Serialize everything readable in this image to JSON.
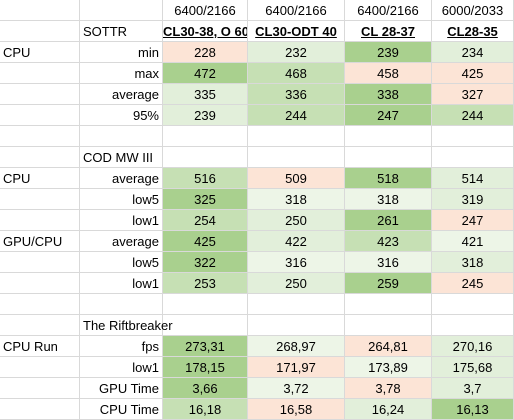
{
  "colors": {
    "green_dark": "#a9d08e",
    "green_mid": "#c6e0b4",
    "green_light": "#e2efda",
    "green_pale": "#edf5e7",
    "red_pale": "#fce4d6",
    "red_light": "#f8cbad",
    "gridline": "#d9d9d9"
  },
  "sheet": {
    "rows": [
      {
        "a": "",
        "b": "",
        "c": "6400/2166",
        "d": "6400/2166",
        "e": "6400/2166",
        "f": "6000/2033"
      },
      {
        "a": "",
        "b": "SOTTR",
        "c": "CL30-38, O 60",
        "d": "CL30-ODT 40",
        "e": "CL 28-37",
        "f": "CL28-35",
        "type": "header"
      },
      {
        "a": "CPU",
        "b": "min",
        "c": "228",
        "d": "232",
        "e": "239",
        "f": "234",
        "fills": [
          "r-pale",
          "g-light",
          "g-dark",
          "g-light"
        ]
      },
      {
        "a": "",
        "b": "max",
        "c": "472",
        "d": "468",
        "e": "458",
        "f": "425",
        "fills": [
          "g-dark",
          "g-mid",
          "r-pale",
          "r-pale"
        ]
      },
      {
        "a": "",
        "b": "average",
        "c": "335",
        "d": "336",
        "e": "338",
        "f": "327",
        "fills": [
          "g-light",
          "g-mid",
          "g-dark",
          "r-pale"
        ]
      },
      {
        "a": "",
        "b": "95%",
        "c": "239",
        "d": "244",
        "e": "247",
        "f": "244",
        "fills": [
          "g-light",
          "g-mid",
          "g-dark",
          "g-mid"
        ]
      },
      {
        "a": "",
        "b": "",
        "c": "",
        "d": "",
        "e": "",
        "f": ""
      },
      {
        "a": "",
        "b": "COD MW III",
        "c": "",
        "d": "",
        "e": "",
        "f": "",
        "type": "section"
      },
      {
        "a": "CPU",
        "b": "average",
        "c": "516",
        "d": "509",
        "e": "518",
        "f": "514",
        "fills": [
          "g-mid",
          "r-pale",
          "g-dark",
          "g-light"
        ]
      },
      {
        "a": "",
        "b": "low5",
        "c": "325",
        "d": "318",
        "e": "318",
        "f": "319",
        "fills": [
          "g-dark",
          "g-pale",
          "g-pale",
          "g-light"
        ]
      },
      {
        "a": "",
        "b": "low1",
        "c": "254",
        "d": "250",
        "e": "261",
        "f": "247",
        "fills": [
          "g-mid",
          "g-light",
          "g-dark",
          "r-pale"
        ]
      },
      {
        "a": "GPU/CPU",
        "b": "average",
        "c": "425",
        "d": "422",
        "e": "423",
        "f": "421",
        "fills": [
          "g-dark",
          "g-light",
          "g-mid",
          "g-pale"
        ]
      },
      {
        "a": "",
        "b": "low5",
        "c": "322",
        "d": "316",
        "e": "316",
        "f": "318",
        "fills": [
          "g-dark",
          "g-pale",
          "g-pale",
          "g-light"
        ]
      },
      {
        "a": "",
        "b": "low1",
        "c": "253",
        "d": "250",
        "e": "259",
        "f": "245",
        "fills": [
          "g-mid",
          "g-light",
          "g-dark",
          "r-pale"
        ]
      },
      {
        "a": "",
        "b": "",
        "c": "",
        "d": "",
        "e": "",
        "f": ""
      },
      {
        "a": "",
        "b": "The Riftbreaker",
        "c": "",
        "d": "",
        "e": "",
        "f": "",
        "type": "section"
      },
      {
        "a": "CPU Run",
        "b": "fps",
        "c": "273,31",
        "d": "268,97",
        "e": "264,81",
        "f": "270,16",
        "fills": [
          "g-dark",
          "g-pale",
          "r-pale",
          "g-light"
        ]
      },
      {
        "a": "",
        "b": "low1",
        "c": "178,15",
        "d": "171,97",
        "e": "173,89",
        "f": "175,68",
        "fills": [
          "g-dark",
          "r-pale",
          "g-pale",
          "g-light"
        ]
      },
      {
        "a": "",
        "b": "GPU Time",
        "c": "3,66",
        "d": "3,72",
        "e": "3,78",
        "f": "3,7",
        "fills": [
          "g-dark",
          "g-pale",
          "r-pale",
          "g-light"
        ]
      },
      {
        "a": "",
        "b": "CPU Time",
        "c": "16,18",
        "d": "16,58",
        "e": "16,24",
        "f": "16,13",
        "fills": [
          "g-mid",
          "r-pale",
          "g-light",
          "g-dark"
        ]
      }
    ]
  }
}
